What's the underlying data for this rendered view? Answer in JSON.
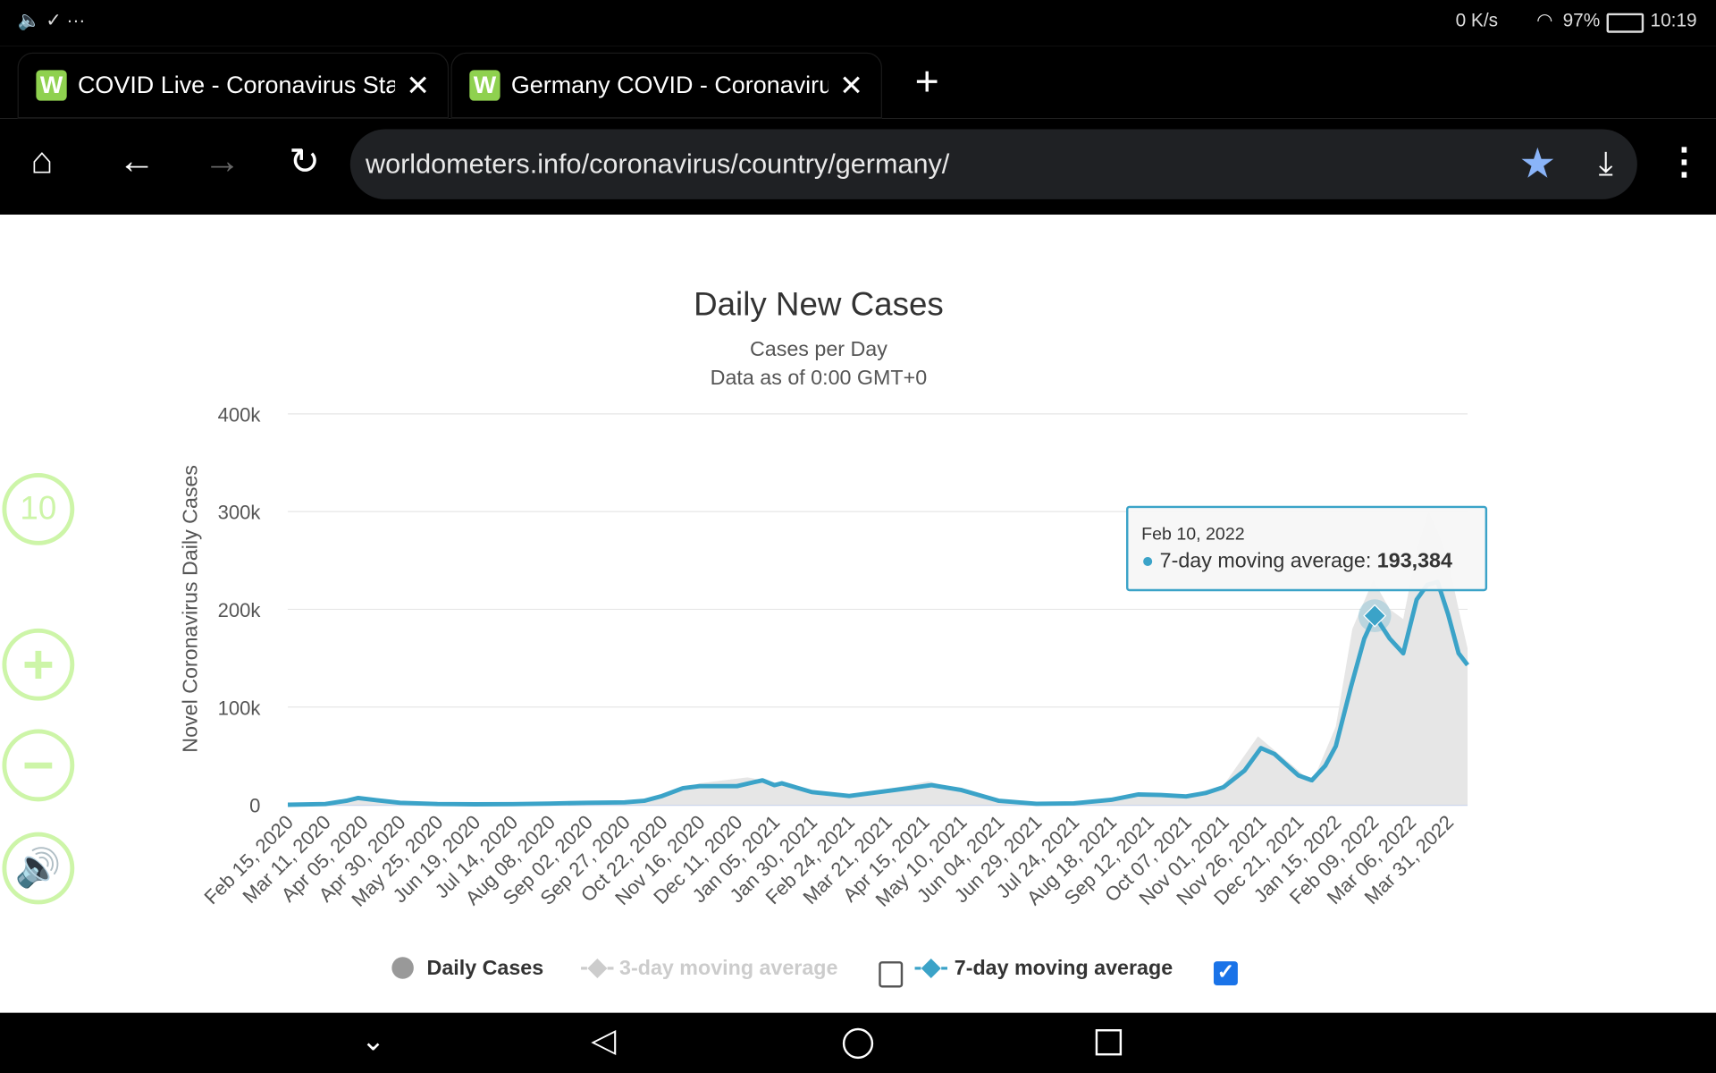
{
  "status_bar": {
    "net_speed": "0 K/s",
    "battery": "97%",
    "time": "10:19"
  },
  "tabs": [
    {
      "title": "COVID Live - Coronavirus Statistics",
      "favicon": "W"
    },
    {
      "title": "Germany COVID - Coronavirus",
      "favicon": "W"
    }
  ],
  "address_bar": {
    "url": "worldometers.info/coronavirus/country/germany/"
  },
  "side_controls": {
    "timer_label": "10"
  },
  "colors": {
    "accent": "#3ba3c8",
    "bars": "#e6e6e6",
    "side": "#cdf5a8",
    "star": "#8ab4f8"
  },
  "chart_data": {
    "type": "line",
    "title": "Daily New Cases",
    "subtitle": "Cases per Day",
    "subtitle2": "Data as of 0:00 GMT+0",
    "ylabel": "Novel Coronavirus Daily Cases",
    "ylim": [
      0,
      400000
    ],
    "y_ticks": [
      "0",
      "100k",
      "200k",
      "300k",
      "400k"
    ],
    "y_tick_values": [
      0,
      100000,
      200000,
      300000,
      400000
    ],
    "x_range": [
      "2020-02-15",
      "2022-04-13"
    ],
    "x_ticks": [
      "Feb 15, 2020",
      "Mar 11, 2020",
      "Apr 05, 2020",
      "Apr 30, 2020",
      "May 25, 2020",
      "Jun 19, 2020",
      "Jul 14, 2020",
      "Aug 08, 2020",
      "Sep 02, 2020",
      "Sep 27, 2020",
      "Oct 22, 2020",
      "Nov 16, 2020",
      "Dec 11, 2020",
      "Jan 05, 2021",
      "Jan 30, 2021",
      "Feb 24, 2021",
      "Mar 21, 2021",
      "Apr 15, 2021",
      "May 10, 2021",
      "Jun 04, 2021",
      "Jun 29, 2021",
      "Jul 24, 2021",
      "Aug 18, 2021",
      "Sep 12, 2021",
      "Oct 07, 2021",
      "Nov 01, 2021",
      "Nov 26, 2021",
      "Dec 21, 2021",
      "Jan 15, 2022",
      "Feb 09, 2022",
      "Mar 06, 2022",
      "Mar 31, 2022"
    ],
    "grid": true,
    "legend": {
      "placement": "bottom",
      "items": [
        {
          "name": "Daily Cases",
          "enabled": true
        },
        {
          "name": "3-day moving average",
          "enabled": false
        },
        {
          "name": "7-day moving average",
          "enabled": true
        }
      ]
    },
    "series": [
      {
        "name": "Daily Cases",
        "kind": "area",
        "x": [
          "2020-02-15",
          "2020-03-11",
          "2020-04-02",
          "2020-04-30",
          "2020-06-15",
          "2020-08-08",
          "2020-09-27",
          "2020-10-22",
          "2020-11-16",
          "2020-12-18",
          "2021-01-05",
          "2021-01-30",
          "2021-02-24",
          "2021-03-21",
          "2021-04-18",
          "2021-05-10",
          "2021-06-04",
          "2021-06-29",
          "2021-07-24",
          "2021-08-18",
          "2021-09-12",
          "2021-10-07",
          "2021-11-01",
          "2021-11-24",
          "2021-12-21",
          "2021-12-30",
          "2022-01-15",
          "2022-01-26",
          "2022-02-09",
          "2022-02-20",
          "2022-03-01",
          "2022-03-10",
          "2022-03-18",
          "2022-03-24",
          "2022-03-31",
          "2022-04-07",
          "2022-04-13"
        ],
        "values": [
          0,
          1500,
          7000,
          1500,
          500,
          1000,
          2000,
          10000,
          22000,
          28000,
          23000,
          13000,
          9000,
          16000,
          24000,
          15000,
          3000,
          700,
          1500,
          6000,
          12000,
          9000,
          20000,
          70000,
          35000,
          22000,
          80000,
          180000,
          230000,
          200000,
          190000,
          260000,
          300000,
          280000,
          250000,
          200000,
          160000
        ]
      },
      {
        "name": "7-day moving average",
        "kind": "line",
        "x": [
          "2020-02-15",
          "2020-03-11",
          "2020-03-25",
          "2020-04-02",
          "2020-04-15",
          "2020-04-30",
          "2020-05-25",
          "2020-06-19",
          "2020-07-14",
          "2020-08-08",
          "2020-09-02",
          "2020-09-27",
          "2020-10-10",
          "2020-10-22",
          "2020-11-05",
          "2020-11-16",
          "2020-12-11",
          "2020-12-22",
          "2020-12-28",
          "2021-01-05",
          "2021-01-10",
          "2021-01-30",
          "2021-02-24",
          "2021-03-21",
          "2021-04-05",
          "2021-04-20",
          "2021-05-10",
          "2021-06-04",
          "2021-06-29",
          "2021-07-24",
          "2021-08-18",
          "2021-09-05",
          "2021-09-20",
          "2021-10-07",
          "2021-10-20",
          "2021-11-01",
          "2021-11-15",
          "2021-11-26",
          "2021-12-05",
          "2021-12-21",
          "2021-12-30",
          "2022-01-08",
          "2022-01-15",
          "2022-01-25",
          "2022-02-03",
          "2022-02-10",
          "2022-02-20",
          "2022-03-01",
          "2022-03-10",
          "2022-03-17",
          "2022-03-24",
          "2022-03-31",
          "2022-04-07",
          "2022-04-13"
        ],
        "values": [
          0,
          800,
          4000,
          7000,
          4500,
          2000,
          800,
          500,
          700,
          1200,
          2000,
          2500,
          4000,
          9000,
          17000,
          19000,
          19000,
          23000,
          25000,
          20000,
          22000,
          13000,
          9000,
          14000,
          17000,
          20000,
          15000,
          4000,
          1000,
          1500,
          5000,
          10500,
          10000,
          8500,
          12000,
          18000,
          35000,
          58000,
          52000,
          30000,
          25000,
          40000,
          60000,
          120000,
          170000,
          193384,
          170000,
          155000,
          210000,
          225000,
          228000,
          195000,
          155000,
          143000
        ]
      }
    ],
    "tooltip": {
      "date": "Feb 10, 2022",
      "series": "7-day moving average",
      "label": "7-day moving average: ",
      "value": "193,384",
      "x": "2022-02-10"
    }
  }
}
